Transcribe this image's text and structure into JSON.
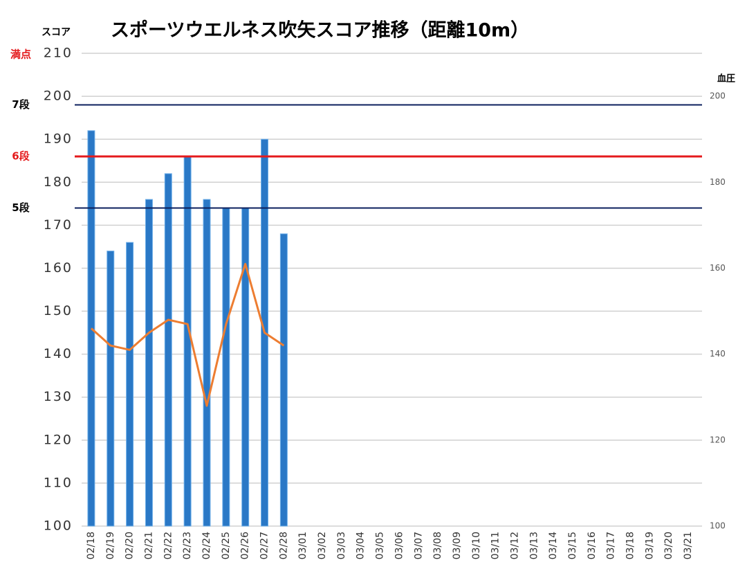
{
  "chart_data": {
    "type": "bar",
    "title": "スポーツウエルネス吹矢スコア推移（距離10m）",
    "y_label": "スコア",
    "y2_label": "血圧",
    "categories": [
      "02/18",
      "02/19",
      "02/20",
      "02/21",
      "02/22",
      "02/23",
      "02/24",
      "02/25",
      "02/26",
      "02/27",
      "02/28",
      "03/01",
      "03/02",
      "03/03",
      "03/04",
      "03/05",
      "03/06",
      "03/07",
      "03/08",
      "03/09",
      "03/10",
      "03/11",
      "03/12",
      "03/13",
      "03/14",
      "03/15",
      "03/16",
      "03/17",
      "03/18",
      "03/19",
      "03/20",
      "03/21"
    ],
    "series": [
      {
        "name": "スコア",
        "type": "bar",
        "color": "#2a78c6",
        "values": [
          192,
          164,
          166,
          176,
          182,
          186,
          176,
          174,
          174,
          190,
          168,
          null,
          null,
          null,
          null,
          null,
          null,
          null,
          null,
          null,
          null,
          null,
          null,
          null,
          null,
          null,
          null,
          null,
          null,
          null,
          null,
          null
        ]
      },
      {
        "name": "血圧",
        "type": "line",
        "axis": "y2",
        "color": "#ed7d31",
        "values": [
          146,
          142,
          141,
          145,
          148,
          147,
          128,
          147,
          161,
          145,
          142,
          null,
          null,
          null,
          null,
          null,
          null,
          null,
          null,
          null,
          null,
          null,
          null,
          null,
          null,
          null,
          null,
          null,
          null,
          null,
          null,
          null
        ]
      }
    ],
    "ylim": [
      100,
      210
    ],
    "yticks": [
      100,
      110,
      120,
      130,
      140,
      150,
      160,
      170,
      180,
      190,
      200,
      210
    ],
    "y2lim": [
      100,
      210
    ],
    "y2ticks": [
      100,
      120,
      140,
      160,
      180,
      200
    ],
    "grid": true,
    "levels": [
      {
        "label": "満点",
        "value": 210,
        "color": "#e41a1c"
      },
      {
        "label": "7段",
        "value": 198,
        "color": "#000000",
        "line_color": "#0b1f5c"
      },
      {
        "label": "6段",
        "value": 186,
        "color": "#e41a1c",
        "line_color": "#e41a1c"
      },
      {
        "label": "5段",
        "value": 174,
        "color": "#000000",
        "line_color": "#0b1f5c"
      }
    ]
  }
}
